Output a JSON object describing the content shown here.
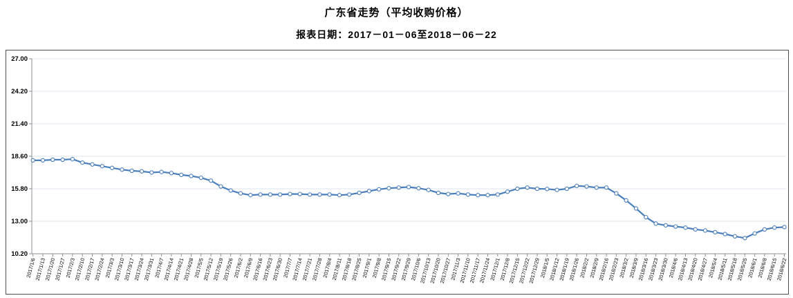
{
  "chart": {
    "title": "广东省走势（平均收购价格）",
    "subtitle": "报表日期：2017－01－06至2018－06－22"
  },
  "chart_data": {
    "type": "line",
    "title": "广东省走势（平均收购价格）",
    "subtitle": "报表日期：2017－01－06至2018－06－22",
    "legend_position": "none",
    "grid": true,
    "xlabel": "",
    "ylabel": "",
    "ylim": [
      10.2,
      27.0
    ],
    "ytick_step": 2.8,
    "yticks": [
      "27.00",
      "24.20",
      "21.40",
      "18.60",
      "15.80",
      "13.00",
      "10.20"
    ],
    "line_color": "#4a7ebb",
    "gridline_color": "#dde3ec",
    "axis_color": "#8c8f94",
    "marker": "open-circle",
    "x": [
      "2017/1/6",
      "2017/1/13",
      "2017/1/20",
      "2017/1/27",
      "2017/2/3",
      "2017/2/10",
      "2017/2/17",
      "2017/2/24",
      "2017/3/3",
      "2017/3/10",
      "2017/3/17",
      "2017/3/24",
      "2017/3/31",
      "2017/4/7",
      "2017/4/14",
      "2017/4/21",
      "2017/4/28",
      "2017/5/5",
      "2017/5/12",
      "2017/5/19",
      "2017/5/26",
      "2017/6/2",
      "2017/6/9",
      "2017/6/16",
      "2017/6/23",
      "2017/6/30",
      "2017/7/7",
      "2017/7/14",
      "2017/7/21",
      "2017/7/28",
      "2017/8/4",
      "2017/8/11",
      "2017/8/18",
      "2017/8/25",
      "2017/9/1",
      "2017/9/8",
      "2017/9/15",
      "2017/9/22",
      "2017/9/29",
      "2017/10/6",
      "2017/10/13",
      "2017/10/20",
      "2017/10/27",
      "2017/11/3",
      "2017/11/10",
      "2017/11/17",
      "2017/11/24",
      "2017/12/1",
      "2017/12/8",
      "2017/12/15",
      "2017/12/22",
      "2017/12/29",
      "2018/1/5",
      "2018/1/12",
      "2018/1/19",
      "2018/1/26",
      "2018/2/2",
      "2018/2/9",
      "2018/2/16",
      "2018/2/23",
      "2018/3/2",
      "2018/3/9",
      "2018/3/16",
      "2018/3/23",
      "2018/3/30",
      "2018/4/6",
      "2018/4/13",
      "2018/4/20",
      "2018/4/27",
      "2018/5/4",
      "2018/5/11",
      "2018/5/18",
      "2018/5/25",
      "2018/6/1",
      "2018/6/8",
      "2018/6/15",
      "2018/6/22"
    ],
    "series": [
      {
        "name": "平均收购价格",
        "values": [
          18.25,
          18.25,
          18.3,
          18.3,
          18.35,
          18.05,
          17.9,
          17.75,
          17.6,
          17.45,
          17.35,
          17.3,
          17.2,
          17.25,
          17.15,
          17.0,
          16.9,
          16.75,
          16.5,
          16.0,
          15.65,
          15.4,
          15.25,
          15.3,
          15.3,
          15.3,
          15.35,
          15.35,
          15.3,
          15.3,
          15.3,
          15.25,
          15.3,
          15.45,
          15.6,
          15.75,
          15.85,
          15.9,
          15.95,
          15.85,
          15.7,
          15.45,
          15.35,
          15.4,
          15.3,
          15.25,
          15.25,
          15.3,
          15.55,
          15.8,
          15.9,
          15.8,
          15.78,
          15.7,
          15.8,
          16.05,
          16.0,
          15.9,
          15.9,
          15.4,
          14.8,
          14.1,
          13.35,
          12.8,
          12.65,
          12.55,
          12.45,
          12.3,
          12.2,
          12.05,
          11.9,
          11.7,
          11.55,
          11.95,
          12.3,
          12.45,
          12.5
        ]
      }
    ]
  }
}
